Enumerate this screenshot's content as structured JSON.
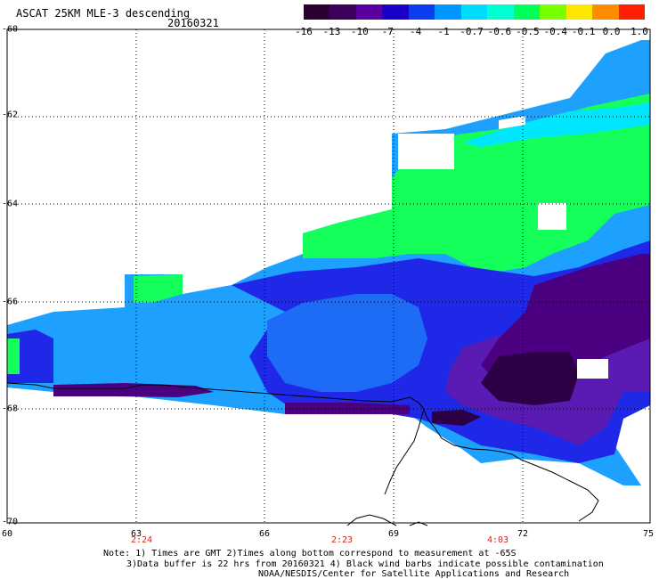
{
  "header": {
    "title": "ASCAT 25KM MLE-3 descending",
    "date": "20160321"
  },
  "colorbar": {
    "labels": [
      "-16",
      "-13",
      "-10",
      "-7",
      "-4",
      "-1",
      "-0.7",
      "-0.6",
      "-0.5",
      "-0.4",
      "-0.1",
      "0.0",
      "1.0"
    ],
    "colors": [
      "#2a0032",
      "#3c005a",
      "#5a00a0",
      "#1a00c8",
      "#0a3cf0",
      "#0096ff",
      "#00dcff",
      "#00ffd2",
      "#00ff5a",
      "#78ff00",
      "#ffe600",
      "#ff8c00",
      "#ff1e00"
    ]
  },
  "map": {
    "lat_labels": [
      "-60",
      "-62",
      "-64",
      "-66",
      "-68",
      "-70"
    ],
    "lon_labels": [
      "60",
      "63",
      "66",
      "69",
      "72",
      "75"
    ],
    "time_labels": [
      "2:24",
      "2:23",
      "4:03"
    ],
    "palette": {
      "dark_purple": "#2d0046",
      "purple": "#4b0082",
      "violet": "#5a1ab4",
      "blue": "#1e28e6",
      "mid_blue": "#1e6cf5",
      "sky": "#1ea0ff",
      "cyan": "#00e6ff",
      "green": "#14ff5a",
      "white": "#ffffff"
    }
  },
  "footer": {
    "note_line1": "Note: 1) Times are GMT 2)Times along bottom correspond to measurement at -65S",
    "note_line2": "3)Data buffer is 22 hrs from 20160321 4) Black wind barbs indicate possible contamination",
    "note_line3": "NOAA/NESDIS/Center for Satellite Applications and Research"
  }
}
